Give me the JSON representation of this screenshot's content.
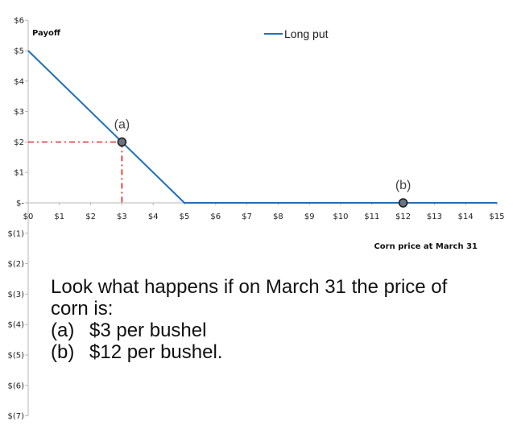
{
  "chart_data": {
    "type": "line",
    "title": "",
    "ylabel": "Payoff",
    "xlabel": "Corn price at March 31",
    "xlim": [
      0,
      15
    ],
    "ylim": [
      -7,
      6
    ],
    "x_ticks": [
      {
        "value": 0,
        "label": "$0"
      },
      {
        "value": 1,
        "label": "$1"
      },
      {
        "value": 2,
        "label": "$2"
      },
      {
        "value": 3,
        "label": "$3"
      },
      {
        "value": 4,
        "label": "$4"
      },
      {
        "value": 5,
        "label": "$5"
      },
      {
        "value": 6,
        "label": "$6"
      },
      {
        "value": 7,
        "label": "$7"
      },
      {
        "value": 8,
        "label": "$8"
      },
      {
        "value": 9,
        "label": "$9"
      },
      {
        "value": 10,
        "label": "$10"
      },
      {
        "value": 11,
        "label": "$11"
      },
      {
        "value": 12,
        "label": "$12"
      },
      {
        "value": 13,
        "label": "$13"
      },
      {
        "value": 14,
        "label": "$14"
      },
      {
        "value": 15,
        "label": "$15"
      }
    ],
    "y_ticks": [
      {
        "value": 6,
        "label": "$6"
      },
      {
        "value": 5,
        "label": "$5"
      },
      {
        "value": 4,
        "label": "$4"
      },
      {
        "value": 3,
        "label": "$3"
      },
      {
        "value": 2,
        "label": "$2"
      },
      {
        "value": 1,
        "label": "$1"
      },
      {
        "value": 0,
        "label": "$-"
      },
      {
        "value": -1,
        "label": "$(1)"
      },
      {
        "value": -2,
        "label": "$(2)"
      },
      {
        "value": -3,
        "label": "$(3)"
      },
      {
        "value": -4,
        "label": "$(4)"
      },
      {
        "value": -5,
        "label": "$(5)"
      },
      {
        "value": -6,
        "label": "$(6)"
      },
      {
        "value": -7,
        "label": "$(7)"
      }
    ],
    "series": [
      {
        "name": "Long put",
        "color": "#1f6fba",
        "points": [
          {
            "x": 0,
            "y": 5
          },
          {
            "x": 5,
            "y": 0
          },
          {
            "x": 15,
            "y": 0
          }
        ]
      }
    ],
    "highlighted_points": [
      {
        "label": "(a)",
        "x": 3,
        "y": 2
      },
      {
        "label": "(b)",
        "x": 12,
        "y": 0
      }
    ],
    "guide_lines": {
      "color": "#e0201b",
      "style": "dash-dot",
      "at": {
        "x": 3,
        "y": 2
      }
    },
    "legend_position": "top-center",
    "grid": false
  },
  "annotation": {
    "line1": "Look what happens if on March 31 the price of",
    "line2": "corn is:",
    "items": [
      {
        "marker": "(a)",
        "text": "$3 per bushel"
      },
      {
        "marker": "(b)",
        "text": "$12 per bushel."
      }
    ]
  }
}
